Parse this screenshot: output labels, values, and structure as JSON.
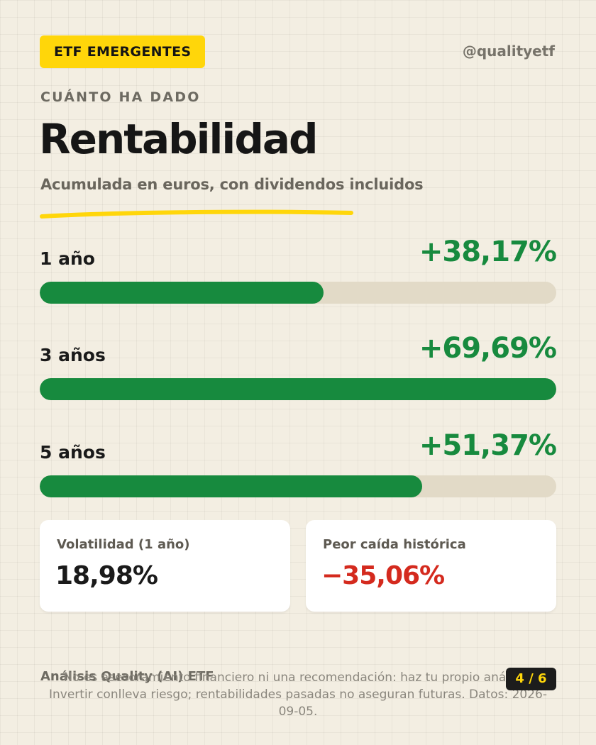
{
  "header": {
    "tag": "ETF EMERGENTES",
    "handle": "@qualityetf"
  },
  "kicker": "CUÁNTO HA DADO",
  "title": "Rentabilidad",
  "subtitle": "Acumulada en euros, con dividendos incluidos",
  "returns": [
    {
      "label": "1 año",
      "value": "+38,17%",
      "bar_fraction": 0.55
    },
    {
      "label": "3 años",
      "value": "+69,69%",
      "bar_fraction": 1.0
    },
    {
      "label": "5 años",
      "value": "+51,37%",
      "bar_fraction": 0.74
    }
  ],
  "cards": [
    {
      "label": "Volatilidad (1 año)",
      "value": "18,98%"
    },
    {
      "label": "Peor caída histórica",
      "value": "−35,06%"
    }
  ],
  "footer": {
    "brand": "Análisis Quality (AI) ETF",
    "disclaimer": "No es asesoramiento financiero ni una recomendación: haz tu propio análisis. Invertir conlleva riesgo; rentabilidades pasadas no aseguran futuras. Datos: 2026-09-05.",
    "pager": "4 / 6"
  },
  "colors": {
    "background": "#f3eee2",
    "accent_yellow": "#ffd60a",
    "positive_green": "#178a3e",
    "negative_red": "#d42a1e",
    "track": "#e2dac7"
  }
}
